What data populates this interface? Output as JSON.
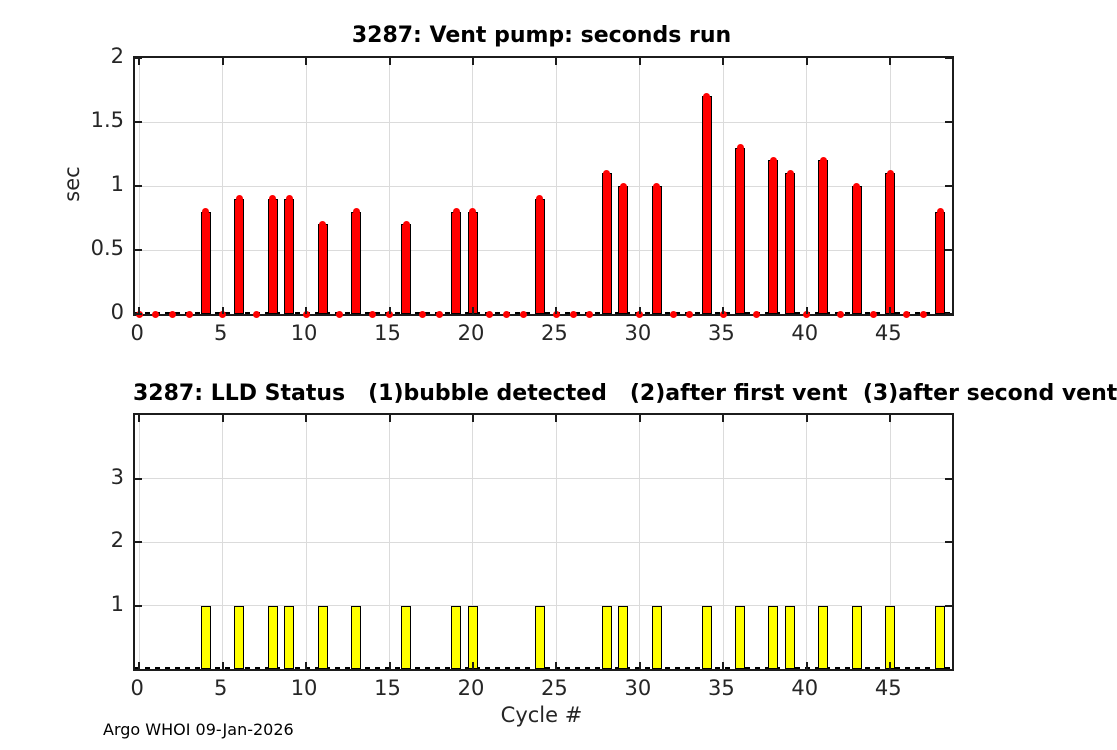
{
  "figure": {
    "footer": "Argo WHOI 09-Jan-2026"
  },
  "chart_data": [
    {
      "type": "bar",
      "title": "3287: Vent pump: seconds run",
      "ylabel": "sec",
      "xlabel": "",
      "bar_color": "#ff0000",
      "bar_edge_color": "#000000",
      "marker_color": "#ff0000",
      "grid": true,
      "legend": "none",
      "xlim": [
        -0.25,
        48.7
      ],
      "ylim": [
        0,
        2
      ],
      "xticks": [
        0,
        5,
        10,
        15,
        20,
        25,
        30,
        35,
        40,
        45
      ],
      "yticks": [
        0,
        0.5,
        1,
        1.5,
        2
      ],
      "x": [
        0,
        1,
        2,
        3,
        4,
        5,
        6,
        7,
        8,
        9,
        10,
        11,
        12,
        13,
        14,
        15,
        16,
        17,
        18,
        19,
        20,
        21,
        22,
        23,
        24,
        25,
        26,
        27,
        28,
        29,
        30,
        31,
        32,
        33,
        34,
        35,
        36,
        37,
        38,
        39,
        40,
        41,
        42,
        43,
        44,
        45,
        46,
        47,
        48
      ],
      "values": [
        0,
        0,
        0,
        0,
        0.8,
        0,
        0.9,
        0,
        0.9,
        0.9,
        0,
        0.7,
        0,
        0.8,
        0,
        0,
        0.7,
        0,
        0,
        0.8,
        0.8,
        0,
        0,
        0,
        0.9,
        0,
        0,
        0,
        1.1,
        1,
        0,
        1,
        0,
        0,
        1.7,
        0,
        1.3,
        0,
        1.2,
        1.1,
        0,
        1.2,
        0,
        1,
        0,
        1.1,
        0,
        0,
        0.8
      ],
      "markers": true,
      "zero_line_dashed": true
    },
    {
      "type": "bar",
      "title": "3287: LLD Status   (1)bubble detected   (2)after first vent  (3)after second vent",
      "ylabel": "",
      "xlabel": "Cycle #",
      "bar_color": "#ffff00",
      "bar_edge_color": "#000000",
      "grid": true,
      "legend": "none",
      "xlim": [
        -0.25,
        48.7
      ],
      "ylim": [
        0,
        4
      ],
      "xticks": [
        0,
        5,
        10,
        15,
        20,
        25,
        30,
        35,
        40,
        45
      ],
      "yticks": [
        1,
        2,
        3
      ],
      "x": [
        0,
        1,
        2,
        3,
        4,
        5,
        6,
        7,
        8,
        9,
        10,
        11,
        12,
        13,
        14,
        15,
        16,
        17,
        18,
        19,
        20,
        21,
        22,
        23,
        24,
        25,
        26,
        27,
        28,
        29,
        30,
        31,
        32,
        33,
        34,
        35,
        36,
        37,
        38,
        39,
        40,
        41,
        42,
        43,
        44,
        45,
        46,
        47,
        48
      ],
      "values": [
        0,
        0,
        0,
        0,
        1,
        0,
        1,
        0,
        1,
        1,
        0,
        1,
        0,
        1,
        0,
        0,
        1,
        0,
        0,
        1,
        1,
        0,
        0,
        0,
        1,
        0,
        0,
        0,
        1,
        1,
        0,
        1,
        0,
        0,
        1,
        0,
        1,
        0,
        1,
        1,
        0,
        1,
        0,
        1,
        0,
        1,
        0,
        0,
        1
      ],
      "markers": false,
      "zero_line_dashed": true
    }
  ]
}
